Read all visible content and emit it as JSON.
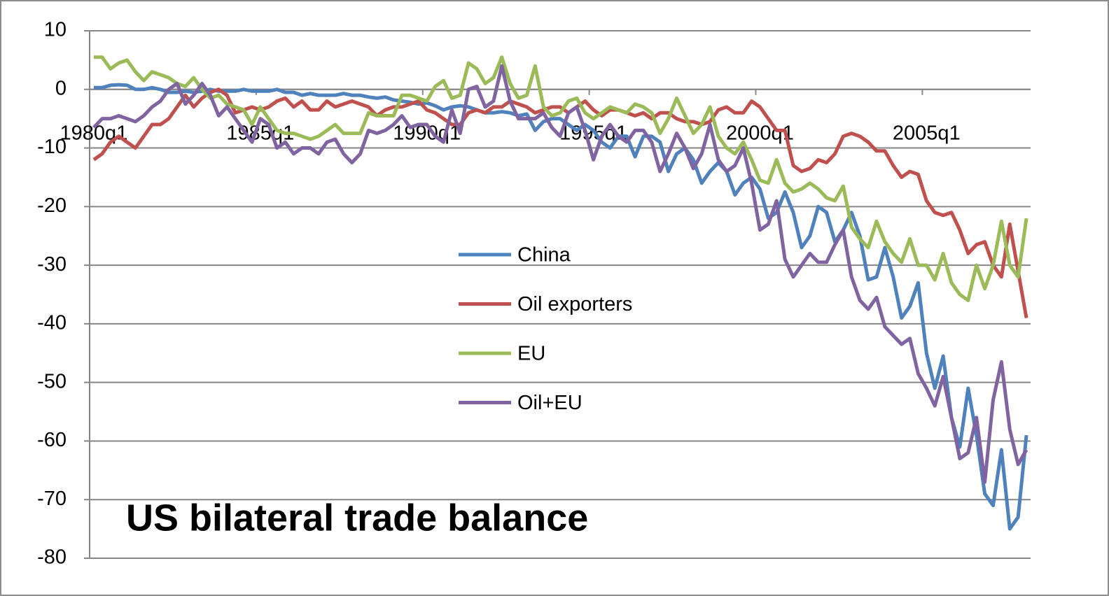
{
  "chart_data": {
    "type": "line",
    "annotation": "US bilateral trade balance",
    "categories": [
      "1980q1",
      null,
      null,
      null,
      null,
      null,
      null,
      null,
      null,
      null,
      null,
      null,
      null,
      null,
      null,
      null,
      null,
      null,
      null,
      null,
      "1985q1",
      null,
      null,
      null,
      null,
      null,
      null,
      null,
      null,
      null,
      null,
      null,
      null,
      null,
      null,
      null,
      null,
      null,
      null,
      null,
      "1990q1",
      null,
      null,
      null,
      null,
      null,
      null,
      null,
      null,
      null,
      null,
      null,
      null,
      null,
      null,
      null,
      null,
      null,
      null,
      null,
      "1995q1",
      null,
      null,
      null,
      null,
      null,
      null,
      null,
      null,
      null,
      null,
      null,
      null,
      null,
      null,
      null,
      null,
      null,
      null,
      null,
      "2000q1",
      null,
      null,
      null,
      null,
      null,
      null,
      null,
      null,
      null,
      null,
      null,
      null,
      null,
      null,
      null,
      null,
      null,
      null,
      null,
      "2005q1",
      null,
      null,
      null,
      null,
      null,
      null,
      null,
      null,
      null,
      null,
      null,
      null
    ],
    "ylim": [
      -80,
      10
    ],
    "yticks": [
      -80,
      -70,
      -60,
      -50,
      -40,
      -30,
      -20,
      -10,
      0,
      10
    ],
    "grid": true,
    "legend": "center",
    "series": [
      {
        "name": "China",
        "color": "#4f81bd",
        "values": [
          0.3,
          0.3,
          0.7,
          0.8,
          0.7,
          0,
          0,
          0.3,
          0,
          -0.5,
          -0.5,
          -0.3,
          -0.5,
          -0.3,
          0,
          -0.3,
          -0.3,
          -0.3,
          0,
          -0.3,
          -0.3,
          -0.3,
          0,
          -0.5,
          -0.5,
          -1,
          -0.7,
          -1,
          -1,
          -1,
          -0.7,
          -1,
          -1,
          -1.3,
          -1.5,
          -1.3,
          -1.8,
          -2,
          -2.2,
          -2.5,
          -2.3,
          -2.8,
          -3.5,
          -3,
          -2.8,
          -3,
          -3.5,
          -4,
          -4,
          -3.8,
          -4,
          -4.5,
          -4.2,
          -7,
          -5.5,
          -5,
          -5,
          -6,
          -7,
          -6,
          -7,
          -9,
          -10,
          -8,
          -8,
          -11.5,
          -8,
          -8,
          -9,
          -14,
          -11,
          -10,
          -12,
          -16,
          -14,
          -12.5,
          -14,
          -18,
          -16,
          -15,
          -17,
          -22,
          -21,
          -17.5,
          -21,
          -27,
          -25,
          -20,
          -21,
          -26,
          -24,
          -21,
          -25,
          -32.5,
          -32,
          -27,
          -32,
          -39,
          -37,
          -33,
          -45,
          -51,
          -45.5,
          -56,
          -61,
          -51,
          -59,
          -69,
          -71,
          -61.5,
          -75,
          -73,
          -59
        ]
      },
      {
        "name": "Oil exporters",
        "color": "#c0504d",
        "values": [
          -12,
          -11,
          -9,
          -8,
          -9,
          -10,
          -8,
          -6,
          -6,
          -5,
          -3,
          -1,
          -3,
          -1.5,
          -0.5,
          0,
          -1,
          -4,
          -3.5,
          -3,
          -3.5,
          -3,
          -2,
          -1.5,
          -3,
          -2,
          -3.5,
          -3.5,
          -2,
          -3,
          -2.5,
          -2,
          -2.5,
          -3,
          -4.5,
          -3.5,
          -3,
          -3,
          -2.5,
          -2,
          -3.5,
          -4,
          -5,
          -6,
          -6,
          -4,
          -3.5,
          -4,
          -3,
          -3,
          -2,
          -2.5,
          -3,
          -4,
          -3.5,
          -3,
          -3,
          -4,
          -3,
          -2,
          -3.5,
          -4.5,
          -3.5,
          -3.5,
          -4,
          -4.5,
          -4,
          -5,
          -4,
          -4,
          -5,
          -5.5,
          -5.5,
          -6,
          -5.5,
          -3.5,
          -3,
          -4,
          -4,
          -2,
          -3,
          -5,
          -7,
          -7,
          -13,
          -14,
          -13.5,
          -12,
          -12.5,
          -11,
          -8,
          -7.5,
          -8,
          -9,
          -10.5,
          -10.5,
          -13,
          -15,
          -14,
          -14.5,
          -19,
          -21,
          -21.5,
          -21,
          -24,
          -28,
          -26.5,
          -26,
          -30,
          -32,
          -23,
          -31,
          -39
        ]
      },
      {
        "name": "EU",
        "color": "#9bbb59",
        "values": [
          5.5,
          5.5,
          3.5,
          4.5,
          5,
          3,
          1.5,
          3,
          2.5,
          2,
          1,
          0.5,
          2,
          0,
          -1.5,
          -1,
          -2.5,
          -3,
          -3.5,
          -6,
          -3,
          -5,
          -7,
          -7.5,
          -7.5,
          -8,
          -8.5,
          -8,
          -7,
          -6,
          -7.5,
          -7.5,
          -7.5,
          -4,
          -4.5,
          -4.5,
          -4.5,
          -1,
          -1,
          -1.5,
          -2,
          0.5,
          1.5,
          -1.5,
          -1,
          4.5,
          3.5,
          1,
          2,
          5.5,
          1,
          -1.5,
          -1,
          4,
          -3,
          -4.5,
          -4,
          -2,
          -1.5,
          -4,
          -5,
          -4,
          -3,
          -3.5,
          -4,
          -2.5,
          -3,
          -4,
          -7.5,
          -5,
          -1.5,
          -4.5,
          -7.5,
          -6,
          -3,
          -8,
          -10,
          -11,
          -9,
          -12,
          -15.5,
          -16,
          -12,
          -16,
          -17.5,
          -17,
          -16,
          -17,
          -18.5,
          -19,
          -16.5,
          -23.5,
          -25.5,
          -27,
          -22.5,
          -26,
          -28,
          -29.5,
          -25.5,
          -30,
          -30,
          -32.5,
          -28,
          -33,
          -35,
          -36,
          -30,
          -34,
          -30,
          -22.5,
          -30,
          -32,
          -22
        ]
      },
      {
        "name": "Oil+EU",
        "color": "#8064a2",
        "values": [
          -6.5,
          -5,
          -5,
          -4.5,
          -5,
          -5.5,
          -4.5,
          -3,
          -2,
          0,
          1,
          -2.5,
          -1,
          1,
          -1,
          -4.5,
          -3,
          -5,
          -7,
          -9,
          -5,
          -6,
          -10,
          -9,
          -11,
          -10,
          -10,
          -11,
          -9,
          -8.5,
          -11,
          -12.5,
          -11,
          -7,
          -7.5,
          -7,
          -6,
          -4.5,
          -6.5,
          -6,
          -6,
          -8,
          -9,
          -3.5,
          -7.5,
          0,
          0.5,
          -3,
          -2,
          4,
          -2,
          -5,
          -5,
          -5,
          -4,
          -6.5,
          -8,
          -4,
          -3,
          -7,
          -12,
          -8,
          -6,
          -8,
          -9,
          -7,
          -7,
          -9,
          -14,
          -11,
          -7.5,
          -10,
          -13.5,
          -11,
          -6,
          -12,
          -14,
          -13,
          -10,
          -16,
          -24,
          -23,
          -19,
          -29,
          -32,
          -30,
          -28,
          -29.5,
          -29.5,
          -26.5,
          -24,
          -32,
          -36,
          -37.5,
          -35.5,
          -40.5,
          -42,
          -43.5,
          -42.5,
          -48.5,
          -51,
          -54,
          -49,
          -56,
          -63,
          -62,
          -56,
          -67,
          -53,
          -46.5,
          -58,
          -64,
          -61.5
        ]
      }
    ]
  }
}
